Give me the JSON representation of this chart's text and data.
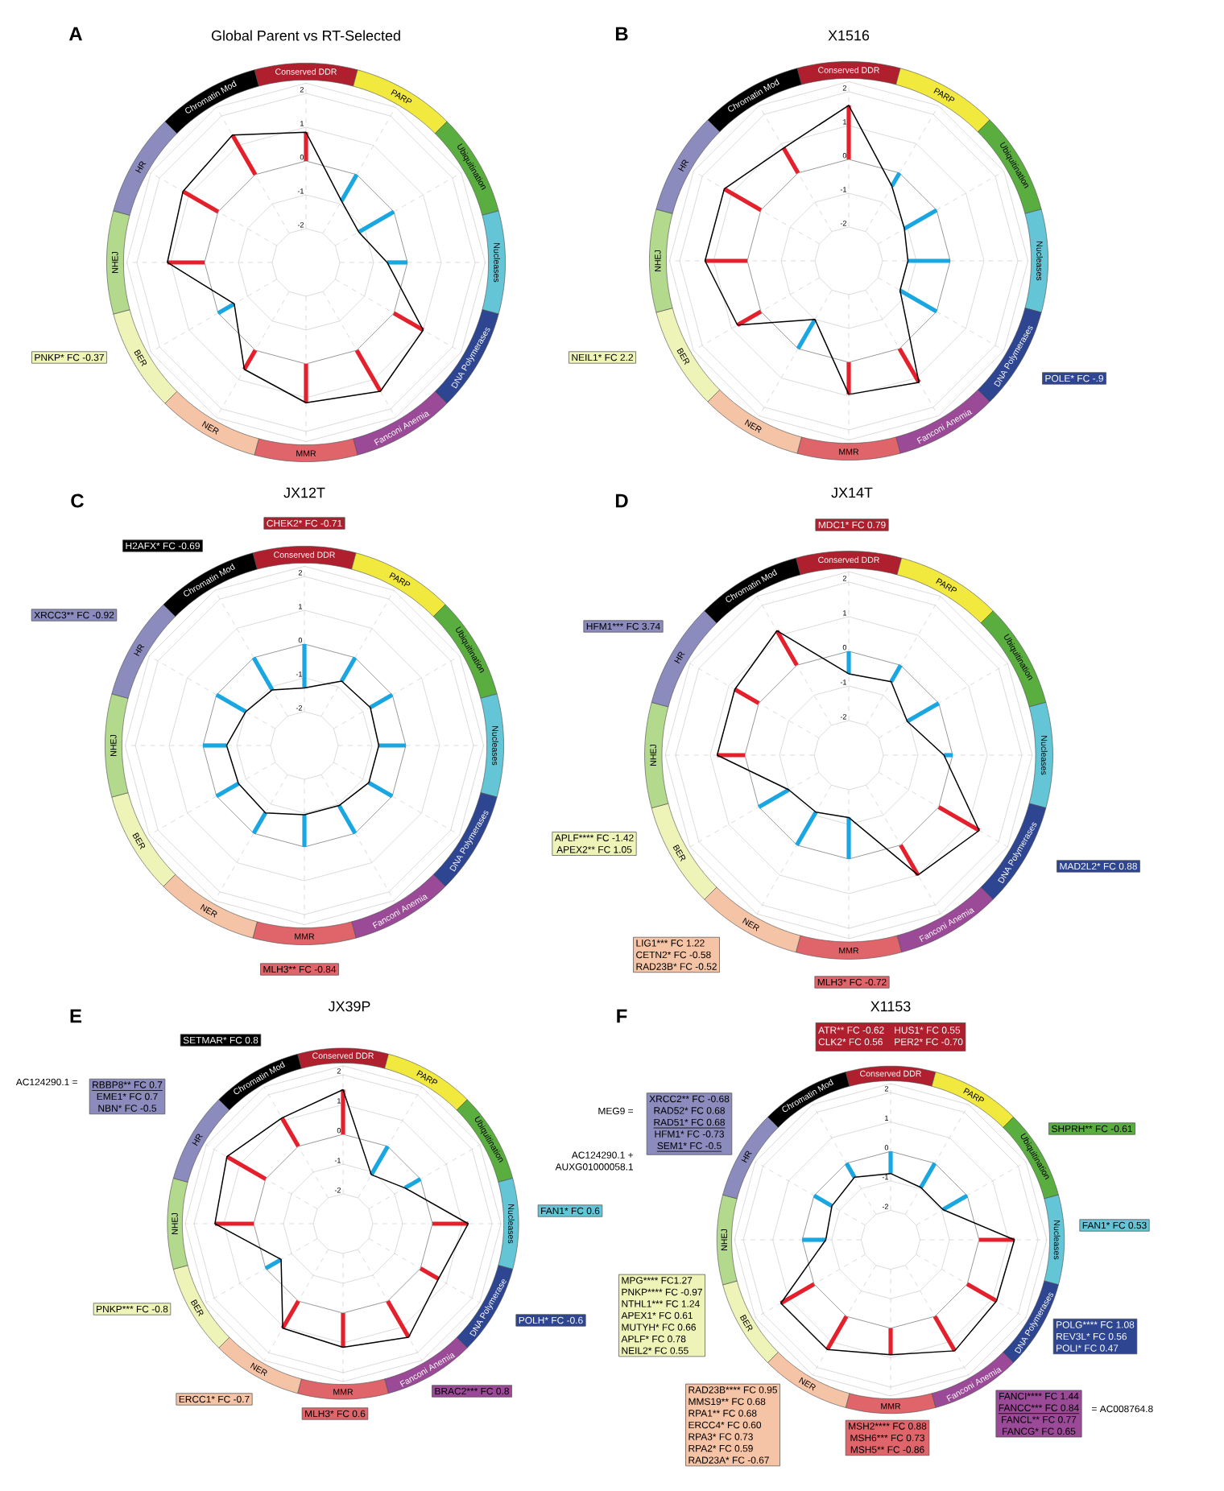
{
  "chart_data": [
    {
      "type": "radar",
      "title": "Global Parent vs RT-Selected",
      "categories": [
        "Conserved DDR",
        "PARP",
        "Ubiquitination",
        "Nucleases",
        "DNA Polymerases",
        "Fanconi Anemia",
        "MMR",
        "NER",
        "BER",
        "NHEJ",
        "HR",
        "Chromatin Mod"
      ],
      "series": [
        {
          "color": "#000000",
          "values": [
            0.85,
            -0.9,
            -1.2,
            -0.6,
            1.0,
            1.4,
            1.15,
            0.65,
            -0.55,
            1.1,
            1.2,
            1.35
          ],
          "colors": [
            "#e3202b",
            "#1aa7e1",
            "#1aa7e1",
            "#1aa7e1",
            "#e3202b",
            "#e3202b",
            "#e3202b",
            "#e3202b",
            "#1aa7e1",
            "#e3202b",
            "#e3202b",
            "#e3202b"
          ]
        }
      ],
      "ylim": [
        -3,
        2.3
      ],
      "yticks": [
        -2,
        -1,
        0,
        1,
        2
      ],
      "grid": true,
      "annotations": [
        "A",
        "PNKP* FC -0.37"
      ]
    },
    {
      "type": "radar",
      "title": "X1516",
      "categories": [
        "Conserved DDR",
        "PARP",
        "Ubiquitination",
        "Nucleases",
        "DNA Polymerases",
        "Fanconi Anemia",
        "MMR",
        "NER",
        "BER",
        "NHEJ",
        "HR",
        "Chromatin Mod"
      ],
      "series": [
        {
          "color": "#000000",
          "values": [
            1.6,
            -0.45,
            -1.1,
            -1.25,
            -1.25,
            1.15,
            0.95,
            -1.0,
            0.8,
            1.25,
            1.25,
            0.85
          ],
          "colors": [
            "#e3202b",
            "#1aa7e1",
            "#1aa7e1",
            "#1aa7e1",
            "#1aa7e1",
            "#e3202b",
            "#e3202b",
            "#1aa7e1",
            "#e3202b",
            "#e3202b",
            "#e3202b",
            "#e3202b"
          ]
        }
      ],
      "ylim": [
        -3,
        2.3
      ],
      "yticks": [
        -2,
        -1,
        0,
        1,
        2
      ],
      "grid": true,
      "annotations": [
        "B",
        "NEIL1* FC 2.2",
        "POLE* FC -.9"
      ]
    },
    {
      "type": "radar",
      "title": "JX12T",
      "categories": [
        "Conserved DDR",
        "PARP",
        "Ubiquitination",
        "Nucleases",
        "DNA Polymerases",
        "Fanconi Anemia",
        "MMR",
        "NER",
        "BER",
        "NHEJ",
        "HR",
        "Chromatin Mod"
      ],
      "series": [
        {
          "color": "#000000",
          "values": [
            -1.3,
            -0.8,
            -0.75,
            -0.8,
            -0.8,
            -0.95,
            -0.95,
            -0.7,
            -0.75,
            -0.7,
            -1.0,
            -1.1
          ],
          "colors": [
            "#1aa7e1",
            "#1aa7e1",
            "#1aa7e1",
            "#1aa7e1",
            "#1aa7e1",
            "#1aa7e1",
            "#1aa7e1",
            "#1aa7e1",
            "#1aa7e1",
            "#1aa7e1",
            "#1aa7e1",
            "#1aa7e1"
          ]
        }
      ],
      "ylim": [
        -3,
        2.3
      ],
      "yticks": [
        -2,
        -1,
        0,
        1,
        2
      ],
      "grid": true,
      "annotations": [
        "C",
        "CHEK2* FC -0.71",
        "H2AFX* FC -0.69",
        "XRCC3** FC -0.92",
        "MLH3** FC -0.84"
      ]
    },
    {
      "type": "radar",
      "title": "JX14T",
      "categories": [
        "Conserved DDR",
        "PARP",
        "Ubiquitination",
        "Nucleases",
        "DNA Polymerases",
        "Fanconi Anemia",
        "MMR",
        "NER",
        "BER",
        "NHEJ",
        "HR",
        "Chromatin Mod"
      ],
      "series": [
        {
          "color": "#000000",
          "values": [
            -0.65,
            -0.55,
            -1.05,
            -0.25,
            1.35,
            1.0,
            -1.2,
            -1.1,
            -1.0,
            0.8,
            0.8,
            1.15
          ],
          "colors": [
            "#1aa7e1",
            "#1aa7e1",
            "#1aa7e1",
            "#1aa7e1",
            "#e3202b",
            "#e3202b",
            "#1aa7e1",
            "#1aa7e1",
            "#1aa7e1",
            "#e3202b",
            "#e3202b",
            "#e3202b"
          ]
        }
      ],
      "ylim": [
        -3,
        2.3
      ],
      "yticks": [
        -2,
        -1,
        0,
        1,
        2
      ],
      "grid": true,
      "annotations": [
        "D",
        "MDC1* FC 0.79",
        "HFM1*** FC 3.74",
        "APLF**** FC -1.42",
        "APEX2** FC 1.05",
        "MAD2L2* FC 0.88",
        "LIG1*** FC 1.22",
        "CETN2* FC -0.58",
        "RAD23B* FC -0.52",
        "MLH3* FC -0.72"
      ]
    },
    {
      "type": "radar",
      "title": "JX39P",
      "categories": [
        "Conserved DDR",
        "PARP",
        "Ubiquitination",
        "Nucleases",
        "DNA Polymerase",
        "Fanconi Anemia",
        "MMR",
        "NER",
        "BER",
        "NHEJ",
        "HR",
        "Chromatin Mod"
      ],
      "series": [
        {
          "color": "#000000",
          "values": [
            1.5,
            -1.1,
            -0.6,
            1.2,
            0.7,
            1.4,
            1.15,
            1.05,
            -0.6,
            1.3,
            1.5,
            1.1
          ],
          "colors": [
            "#e3202b",
            "#1aa7e1",
            "#1aa7e1",
            "#e3202b",
            "#e3202b",
            "#e3202b",
            "#e3202b",
            "#e3202b",
            "#1aa7e1",
            "#e3202b",
            "#e3202b",
            "#e3202b"
          ]
        }
      ],
      "ylim": [
        -3,
        2.3
      ],
      "yticks": [
        -2,
        -1,
        0,
        1,
        2
      ],
      "grid": true,
      "annotations": [
        "E",
        "SETMAR* FC 0.8",
        "AC124290.1 =",
        "RBBP8** FC 0.7",
        "EME1* FC 0.7",
        "NBN* FC -0.5",
        "FAN1* FC 0.6",
        "PNKP*** FC -0.8",
        "POLH* FC -0.6",
        "ERCC1* FC -0.7",
        "MLH3* FC 0.6",
        "BRAC2*** FC 0.8"
      ]
    },
    {
      "type": "radar",
      "title": "X1153",
      "categories": [
        "Conserved DDR",
        "PARP",
        "Ubiquitination",
        "Nucleases",
        "DNA Polymerases",
        "Fanconi Anemia",
        "MMR",
        "NER",
        "BER",
        "NHEJ",
        "HR",
        "Chromatin Mod"
      ],
      "series": [
        {
          "color": "#000000",
          "values": [
            -0.75,
            -0.95,
            -0.95,
            1.2,
            1.15,
            1.35,
            0.9,
            1.3,
            1.3,
            -0.8,
            -0.7,
            -0.55
          ],
          "colors": [
            "#1aa7e1",
            "#1aa7e1",
            "#1aa7e1",
            "#e3202b",
            "#e3202b",
            "#e3202b",
            "#e3202b",
            "#e3202b",
            "#e3202b",
            "#1aa7e1",
            "#1aa7e1",
            "#1aa7e1"
          ]
        }
      ],
      "ylim": [
        -3,
        2.3
      ],
      "yticks": [
        -2,
        -1,
        0,
        1,
        2
      ],
      "grid": true,
      "annotations": [
        "F",
        "ATR** FC -0.62",
        "HUS1* FC 0.55",
        "CLK2* FC 0.56",
        "PER2* FC -0.70",
        "SHPRH** FC -0.61",
        "MEG9 =",
        "XRCC2** FC -0.68",
        "RAD52* FC 0.68",
        "RAD51* FC 0.68",
        "HFM1* FC -0.73",
        "SEM1* FC -0.5",
        "AC124290.1 +",
        "AUXG01000058.1",
        "FAN1* FC 0.53",
        "MPG**** FC1.27",
        "PNKP**** FC -0.97",
        "NTHL1*** FC 1.24",
        "APEX1* FC 0.61",
        "MUTYH* FC 0.66",
        "APLF* FC 0.78",
        "NEIL2* FC 0.55",
        "POLG**** FC 1.08",
        "REV3L* FC 0.56",
        "POLI* FC 0.47",
        "RAD23B**** FC 0.95",
        "MMS19** FC 0.68",
        "RPA1** FC 0.68",
        "ERCC4* FC 0.60",
        "RPA3* FC 0.73",
        "RPA2* FC 0.59",
        "RAD23A* FC -0.67",
        "MSH2**** FC 0.88",
        "MSH6*** FC 0.73",
        "MSH5** FC -0.86",
        "FANCI**** FC 1.44",
        "FANCC*** FC 0.84",
        "FANCL** FC 0.77",
        "FANCG* FC 0.65",
        "= AC008764.8"
      ]
    }
  ]
}
